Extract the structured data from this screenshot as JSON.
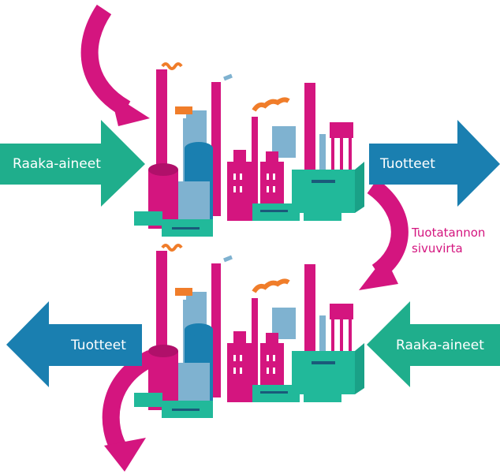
{
  "factories": [
    {
      "input": "Raaka-aineet",
      "output": "Tuotteet"
    },
    {
      "input": "Raaka-aineet",
      "output": "Tuotteet"
    }
  ],
  "side_stream": [
    "Tuotatannon",
    "sivuvirta"
  ]
}
